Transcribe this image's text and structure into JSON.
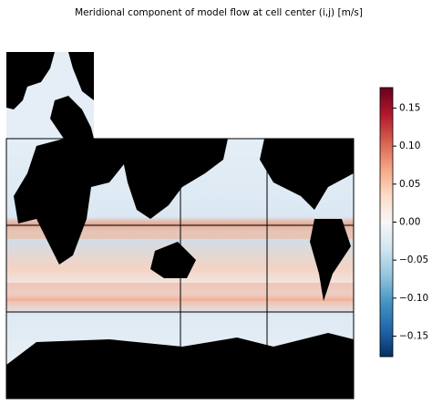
{
  "title": "Meridional component of model flow at cell center (i,j) [m/s]",
  "colorbar": {
    "lim": [
      -0.177,
      0.177
    ],
    "ticks": [
      {
        "value": -0.15,
        "label": "−0.15"
      },
      {
        "value": -0.1,
        "label": "−0.10"
      },
      {
        "value": -0.05,
        "label": "−0.05"
      },
      {
        "value": 0,
        "label": "0.00"
      },
      0.05,
      {
        "value": 0.1,
        "label": "0.10"
      },
      0.15
    ]
  }
}
